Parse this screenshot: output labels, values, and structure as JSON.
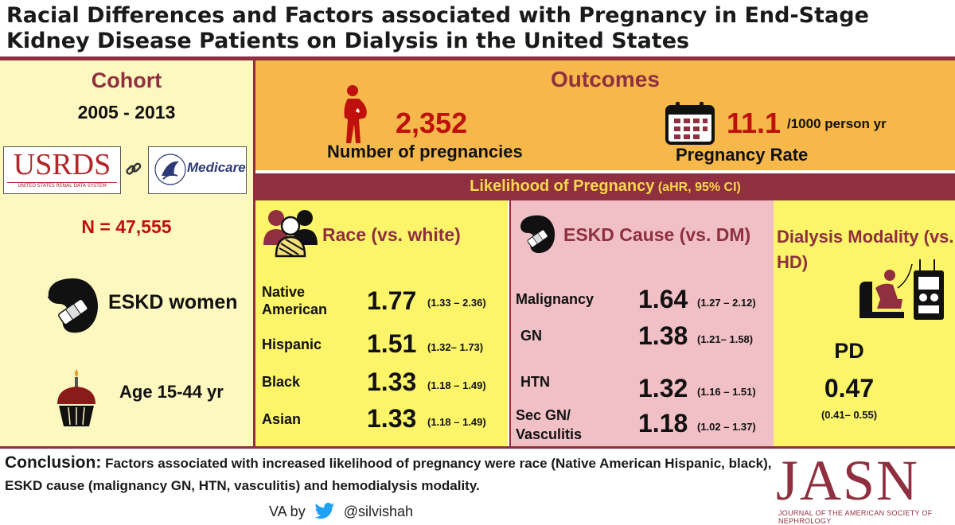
{
  "title": "Racial Differences and Factors associated with Pregnancy in End-Stage Kidney Disease Patients on Dialysis in the United States",
  "cohort": {
    "heading": "Cohort",
    "years": "2005 - 2013",
    "usrds_logo": "USRDS",
    "usrds_sub": "UNITED STATES RENAL DATA SYSTEM",
    "medicare_logo": "Medicare",
    "n": "N = 47,555",
    "women": "ESKD women",
    "age": "Age 15-44 yr"
  },
  "outcomes": {
    "heading": "Outcomes",
    "pregnancies_value": "2,352",
    "pregnancies_label": "Number of pregnancies",
    "rate_value": "11.1",
    "rate_unit": "/1000 person yr",
    "rate_label": "Pregnancy Rate"
  },
  "likelihood": {
    "title": "Likelihood of Pregnancy",
    "suffix": "(aHR, 95% CI)"
  },
  "race": {
    "heading": "Race (vs. white)",
    "rows": [
      {
        "label": "Native American",
        "hr": "1.77",
        "ci": "(1.33 – 2.36)"
      },
      {
        "label": "Hispanic",
        "hr": "1.51",
        "ci": "(1.32– 1.73)"
      },
      {
        "label": "Black",
        "hr": "1.33",
        "ci": "(1.18 – 1.49)"
      },
      {
        "label": "Asian",
        "hr": "1.33",
        "ci": "(1.18 – 1.49)"
      }
    ]
  },
  "cause": {
    "heading": "ESKD Cause (vs. DM)",
    "rows": [
      {
        "label": "Malignancy",
        "hr": "1.64",
        "ci": "(1.27 – 2.12)"
      },
      {
        "label": "GN",
        "hr": "1.38",
        "ci": "(1.21– 1.58)"
      },
      {
        "label": "HTN",
        "hr": "1.32",
        "ci": "(1.16 – 1.51)"
      },
      {
        "label": "Sec GN/ Vasculitis",
        "hr": "1.18",
        "ci": "(1.02 – 1.37)"
      }
    ]
  },
  "modality": {
    "heading": "Dialysis Modality (vs. HD)",
    "label": "PD",
    "hr": "0.47",
    "ci": "(0.41– 0.55)"
  },
  "conclusion": {
    "label": "Conclusion:",
    "text": "Factors associated with increased likelihood of pregnancy were race (Native American Hispanic, black), ESKD cause (malignancy  GN, HTN, vasculitis) and hemodialysis modality."
  },
  "credit": {
    "prefix": "VA by",
    "handle": "@silvishah"
  },
  "journal": {
    "name": "JASN",
    "subtitle": "JOURNAL OF THE AMERICAN SOCIETY OF NEPHROLOGY"
  },
  "colors": {
    "maroon": "#8f2f3f",
    "red": "#c0100c",
    "cream": "#fdf7c0",
    "orange": "#f6b84a",
    "yellow": "#fcf56a",
    "pink": "#f0c0c6"
  }
}
